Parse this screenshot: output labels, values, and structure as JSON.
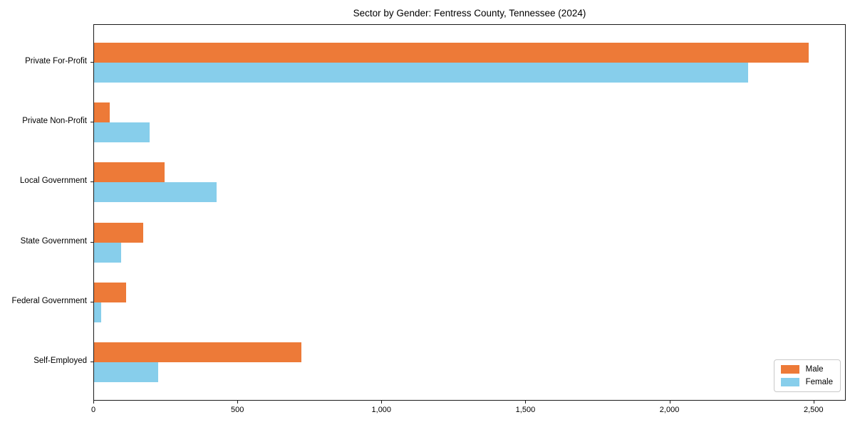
{
  "chart_data": {
    "type": "bar",
    "orientation": "horizontal",
    "title": "Sector by Gender: Fentress County, Tennessee (2024)",
    "categories": [
      "Private For-Profit",
      "Private Non-Profit",
      "Local Government",
      "State Government",
      "Federal Government",
      "Self-Employed"
    ],
    "series": [
      {
        "name": "Male",
        "color": "#ed7a38",
        "values": [
          2485,
          55,
          245,
          170,
          112,
          722
        ]
      },
      {
        "name": "Female",
        "color": "#87ceeb",
        "values": [
          2275,
          193,
          427,
          95,
          24,
          222
        ]
      }
    ],
    "xlabel": "",
    "ylabel": "",
    "xlim": [
      0,
      2612
    ],
    "xticks": {
      "values": [
        0,
        500,
        1000,
        1500,
        2000,
        2500
      ],
      "labels": [
        "0",
        "500",
        "1,000",
        "1,500",
        "2,000",
        "2,500"
      ]
    },
    "legend": {
      "position": "lower right",
      "entries": [
        "Male",
        "Female"
      ]
    },
    "grid": false,
    "background_color": "#ffffff",
    "spine_color": "#1a1a1a"
  }
}
